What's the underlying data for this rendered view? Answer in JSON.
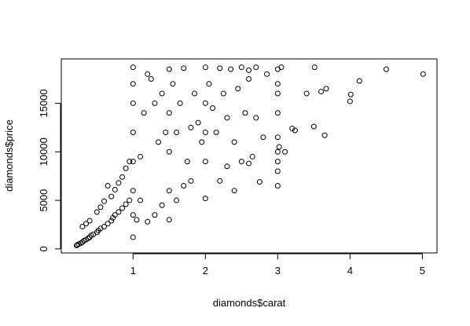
{
  "chart_data": {
    "type": "scatter",
    "xlabel": "diamonds$carat",
    "ylabel": "diamonds$price",
    "xlim": [
      0.2,
      5.01
    ],
    "ylim": [
      326,
      18823
    ],
    "xticks": [
      1,
      2,
      3,
      4,
      5
    ],
    "yticks": [
      0,
      5000,
      10000,
      15000
    ],
    "xtick_labels": [
      "1",
      "2",
      "3",
      "4",
      "5"
    ],
    "ytick_labels": [
      "0",
      "5000",
      "10000",
      "15000"
    ],
    "grid": false,
    "marker": "open-circle",
    "point_color": "#000000",
    "points": [
      [
        0.22,
        350
      ],
      [
        0.23,
        420
      ],
      [
        0.25,
        500
      ],
      [
        0.28,
        600
      ],
      [
        0.3,
        700
      ],
      [
        0.32,
        850
      ],
      [
        0.35,
        950
      ],
      [
        0.38,
        1100
      ],
      [
        0.4,
        1200
      ],
      [
        0.42,
        1400
      ],
      [
        0.45,
        1500
      ],
      [
        0.5,
        1700
      ],
      [
        0.52,
        1900
      ],
      [
        0.55,
        2100
      ],
      [
        0.6,
        2300
      ],
      [
        0.65,
        2600
      ],
      [
        0.7,
        2900
      ],
      [
        0.72,
        3200
      ],
      [
        0.75,
        3500
      ],
      [
        0.8,
        3800
      ],
      [
        0.85,
        4200
      ],
      [
        0.9,
        4600
      ],
      [
        0.95,
        5000
      ],
      [
        0.3,
        2300
      ],
      [
        0.35,
        2600
      ],
      [
        0.4,
        2900
      ],
      [
        0.5,
        3800
      ],
      [
        0.55,
        4300
      ],
      [
        0.6,
        4900
      ],
      [
        0.65,
        6500
      ],
      [
        0.7,
        5400
      ],
      [
        0.75,
        6100
      ],
      [
        0.8,
        6800
      ],
      [
        0.85,
        7400
      ],
      [
        0.9,
        8300
      ],
      [
        0.95,
        9000
      ],
      [
        1.0,
        1200
      ],
      [
        1.0,
        3500
      ],
      [
        1.0,
        6000
      ],
      [
        1.0,
        9000
      ],
      [
        1.0,
        12000
      ],
      [
        1.0,
        15000
      ],
      [
        1.0,
        17000
      ],
      [
        1.0,
        18700
      ],
      [
        1.05,
        3000
      ],
      [
        1.1,
        5000
      ],
      [
        1.1,
        9500
      ],
      [
        1.15,
        14000
      ],
      [
        1.2,
        18000
      ],
      [
        1.25,
        17500
      ],
      [
        1.3,
        15000
      ],
      [
        1.35,
        11000
      ],
      [
        1.4,
        16000
      ],
      [
        1.45,
        12000
      ],
      [
        1.2,
        2800
      ],
      [
        1.3,
        3500
      ],
      [
        1.4,
        4500
      ],
      [
        1.5,
        3000
      ],
      [
        1.5,
        6000
      ],
      [
        1.5,
        10000
      ],
      [
        1.5,
        14000
      ],
      [
        1.5,
        18500
      ],
      [
        1.55,
        17000
      ],
      [
        1.6,
        12000
      ],
      [
        1.65,
        15000
      ],
      [
        1.7,
        18600
      ],
      [
        1.75,
        9000
      ],
      [
        1.8,
        12500
      ],
      [
        1.85,
        16000
      ],
      [
        1.9,
        13000
      ],
      [
        1.95,
        11000
      ],
      [
        1.6,
        5000
      ],
      [
        1.7,
        6500
      ],
      [
        1.8,
        7000
      ],
      [
        2.0,
        5200
      ],
      [
        2.0,
        9000
      ],
      [
        2.0,
        12000
      ],
      [
        2.0,
        15000
      ],
      [
        2.0,
        18700
      ],
      [
        2.05,
        17000
      ],
      [
        2.1,
        14500
      ],
      [
        2.15,
        12000
      ],
      [
        2.2,
        18600
      ],
      [
        2.25,
        16000
      ],
      [
        2.3,
        13500
      ],
      [
        2.35,
        18500
      ],
      [
        2.4,
        11000
      ],
      [
        2.45,
        16500
      ],
      [
        2.5,
        18700
      ],
      [
        2.55,
        14000
      ],
      [
        2.6,
        17500
      ],
      [
        2.65,
        9500
      ],
      [
        2.7,
        13500
      ],
      [
        2.75,
        6900
      ],
      [
        2.8,
        11500
      ],
      [
        2.2,
        7000
      ],
      [
        2.3,
        8500
      ],
      [
        2.4,
        6000
      ],
      [
        2.5,
        9000
      ],
      [
        2.6,
        8800
      ],
      [
        2.6,
        18400
      ],
      [
        2.7,
        18700
      ],
      [
        2.85,
        18000
      ],
      [
        3.0,
        6500
      ],
      [
        3.0,
        8000
      ],
      [
        3.0,
        9000
      ],
      [
        3.0,
        10000
      ],
      [
        3.0,
        11500
      ],
      [
        3.0,
        14000
      ],
      [
        3.0,
        16000
      ],
      [
        3.0,
        17000
      ],
      [
        3.0,
        18500
      ],
      [
        3.02,
        10500
      ],
      [
        3.05,
        18700
      ],
      [
        3.1,
        10000
      ],
      [
        3.2,
        12400
      ],
      [
        3.24,
        12200
      ],
      [
        3.4,
        16000
      ],
      [
        3.5,
        12600
      ],
      [
        3.51,
        18700
      ],
      [
        3.6,
        16200
      ],
      [
        3.65,
        11700
      ],
      [
        3.67,
        16500
      ],
      [
        4.0,
        15200
      ],
      [
        4.01,
        15900
      ],
      [
        4.13,
        17300
      ],
      [
        4.5,
        18500
      ],
      [
        5.01,
        18000
      ]
    ]
  }
}
